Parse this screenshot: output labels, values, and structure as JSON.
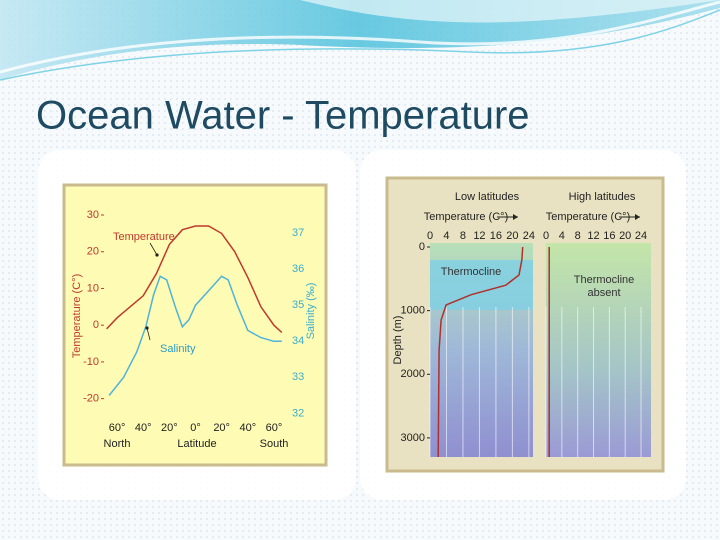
{
  "title": "Ocean Water - Temperature",
  "chart_data": [
    {
      "type": "line",
      "x_label": "Latitude",
      "y_label": "Temperature (C°)",
      "y2_label": "Salinity (‰)",
      "annotations": [
        "North",
        "South"
      ],
      "xlim": [
        -70,
        70
      ],
      "xticks": [
        {
          "value": -60,
          "label": "60°"
        },
        {
          "value": -40,
          "label": "40°"
        },
        {
          "value": -20,
          "label": "20°"
        },
        {
          "value": 0,
          "label": "0°"
        },
        {
          "value": 20,
          "label": "20°"
        },
        {
          "value": 40,
          "label": "40°"
        },
        {
          "value": 60,
          "label": "60°"
        }
      ],
      "ylim": [
        -25,
        30
      ],
      "yticks": [
        30,
        20,
        10,
        0,
        -10,
        -20
      ],
      "y2lim": [
        31.9,
        37.5
      ],
      "y2ticks": [
        37,
        36,
        35,
        34,
        33,
        32
      ],
      "grid": false,
      "series": [
        {
          "name": "Temperature",
          "color": "#c0392b",
          "x": [
            -68,
            -60,
            -50,
            -40,
            -30,
            -20,
            -10,
            0,
            10,
            20,
            30,
            40,
            50,
            60,
            66
          ],
          "values": [
            -1,
            2,
            5,
            8,
            14,
            22,
            26,
            27,
            27,
            25,
            20,
            13,
            5,
            0,
            -2
          ]
        },
        {
          "name": "Salinity",
          "color": "#4fb3d9",
          "axis": "y2",
          "x": [
            -66,
            -55,
            -45,
            -38,
            -32,
            -27,
            -22,
            -15,
            -10,
            -5,
            0,
            10,
            20,
            25,
            32,
            40,
            50,
            60,
            66
          ],
          "values": [
            32.5,
            33.0,
            33.7,
            34.4,
            35.3,
            35.8,
            35.7,
            34.9,
            34.4,
            34.6,
            35.0,
            35.4,
            35.8,
            35.7,
            35.0,
            34.3,
            34.1,
            34.0,
            34.0
          ]
        }
      ]
    },
    {
      "type": "line",
      "title": "Low latitudes",
      "x_label": "Temperature (C°)",
      "y_label": "Depth (m)",
      "annotations": [
        "Thermocline"
      ],
      "xlim": [
        0,
        25
      ],
      "xticks": [
        0,
        4,
        8,
        12,
        16,
        20,
        24
      ],
      "ylim": [
        0,
        3300
      ],
      "y_inverted": true,
      "yticks": [
        0,
        1000,
        2000,
        3000
      ],
      "grid": true,
      "color": "#b0302a",
      "x": [
        22.5,
        22.3,
        21.6,
        18.4,
        10,
        3.9,
        2.7,
        2.2,
        2.1,
        2.0
      ],
      "values": [
        0,
        200,
        440,
        600,
        750,
        910,
        1150,
        1620,
        2300,
        3300
      ]
    },
    {
      "type": "line",
      "title": "High latitudes",
      "x_label": "Temperature (C°)",
      "annotations": [
        "Thermocline absent"
      ],
      "xlim": [
        0,
        25
      ],
      "xticks": [
        0,
        4,
        8,
        12,
        16,
        20,
        24
      ],
      "ylim": [
        0,
        3300
      ],
      "y_inverted": true,
      "grid": true,
      "color": "#b0302a",
      "x": [
        0.8,
        0.8,
        0.8
      ],
      "values": [
        0,
        1500,
        3300
      ]
    }
  ]
}
